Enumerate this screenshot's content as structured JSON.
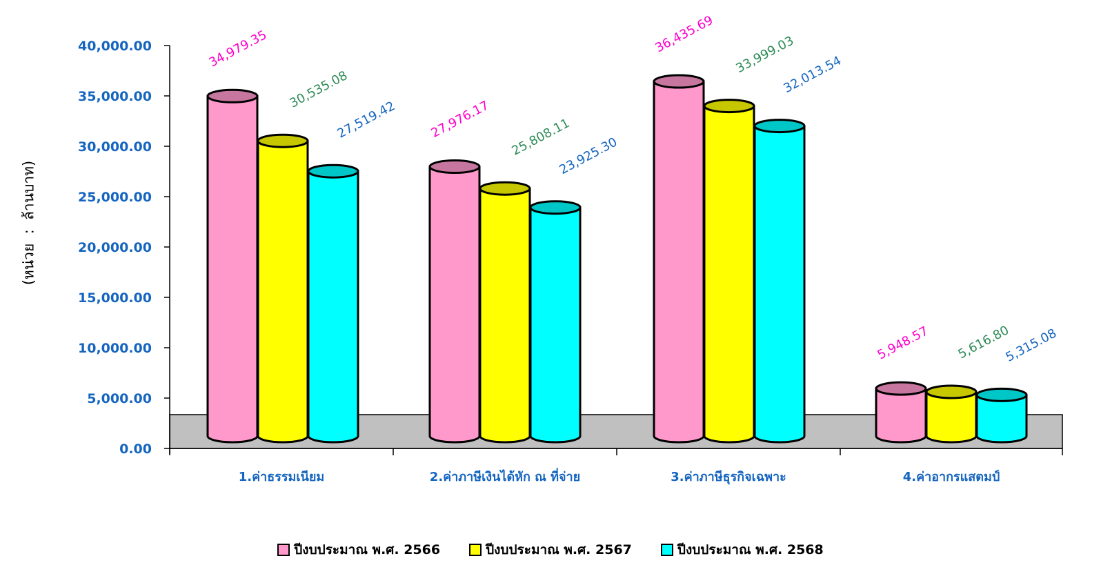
{
  "chart_data": {
    "type": "bar",
    "style": "3d-cylinder",
    "categories": [
      "1.ค่าธรรมเนียม",
      "2.ค่าภาษีเงินได้หัก ณ ที่จ่าย",
      "3.ค่าภาษีธุรกิจเฉพาะ",
      "4.ค่าอากรแสตมป์"
    ],
    "series": [
      {
        "name": "ปีงบประมาณ พ.ศ. 2566",
        "color": "#ff99cc",
        "label_color": "#ff00cc",
        "values": [
          34979.35,
          27976.17,
          36435.69,
          5948.57
        ],
        "labels": [
          "34,979.35",
          "27,976.17",
          "36,435.69",
          "5,948.57"
        ]
      },
      {
        "name": "ปีงบประมาณ พ.ศ. 2567",
        "color": "#ffff00",
        "label_color": "#2e8b57",
        "values": [
          30535.08,
          25808.11,
          33999.03,
          5616.8
        ],
        "labels": [
          "30,535.08",
          "25,808.11",
          "33,999.03",
          "5,616.80"
        ]
      },
      {
        "name": "ปีงบประมาณ พ.ศ. 2568",
        "color": "#00ffff",
        "label_color": "#1565c0",
        "values": [
          27519.42,
          23925.3,
          32013.54,
          5315.08
        ],
        "labels": [
          "27,519.42",
          "23,925.30",
          "32,013.54",
          "5,315.08"
        ]
      }
    ],
    "ylabel": "(หน่วย  :  ล้านบาท)",
    "ylim": [
      0,
      40000
    ],
    "yticks": [
      "0.00",
      "5,000.00",
      "10,000.00",
      "15,000.00",
      "20,000.00",
      "25,000.00",
      "30,000.00",
      "35,000.00",
      "40,000.00"
    ],
    "grid": false,
    "legend_position": "bottom"
  }
}
